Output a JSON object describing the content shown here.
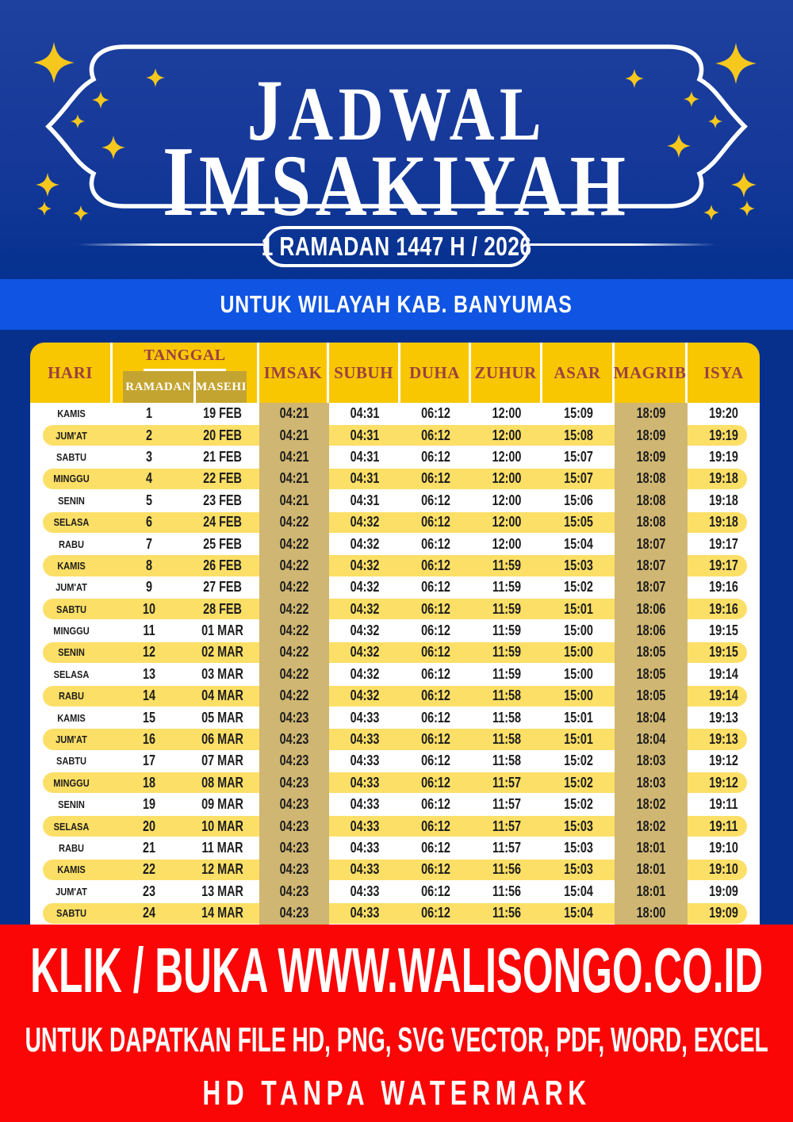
{
  "title": {
    "line1": "JADWAL",
    "line2": "IMSAKIYAH"
  },
  "badge": {
    "label": "1 RAMADAN 1447 H / 2026"
  },
  "region_banner": {
    "label": "UNTUK WILAYAH KAB. BANYUMAS"
  },
  "table": {
    "headers": {
      "hari": "HARI",
      "tanggal": "TANGGAL",
      "ramadan": "RAMADAN",
      "masehi": "MASEHI",
      "times": [
        "IMSAK",
        "SUBUH",
        "DUHA",
        "ZUHUR",
        "ASAR",
        "MAGRIB",
        "ISYA"
      ]
    },
    "rows": [
      {
        "hari": "KAMIS",
        "ramadan": "1",
        "masehi": "19 FEB",
        "imsak": "04:21",
        "subuh": "04:31",
        "duha": "06:12",
        "zuhur": "12:00",
        "asar": "15:09",
        "magrib": "18:09",
        "isya": "19:20"
      },
      {
        "hari": "JUM'AT",
        "ramadan": "2",
        "masehi": "20 FEB",
        "imsak": "04:21",
        "subuh": "04:31",
        "duha": "06:12",
        "zuhur": "12:00",
        "asar": "15:08",
        "magrib": "18:09",
        "isya": "19:19"
      },
      {
        "hari": "SABTU",
        "ramadan": "3",
        "masehi": "21 FEB",
        "imsak": "04:21",
        "subuh": "04:31",
        "duha": "06:12",
        "zuhur": "12:00",
        "asar": "15:07",
        "magrib": "18:09",
        "isya": "19:19"
      },
      {
        "hari": "MINGGU",
        "ramadan": "4",
        "masehi": "22 FEB",
        "imsak": "04:21",
        "subuh": "04:31",
        "duha": "06:12",
        "zuhur": "12:00",
        "asar": "15:07",
        "magrib": "18:08",
        "isya": "19:18"
      },
      {
        "hari": "SENIN",
        "ramadan": "5",
        "masehi": "23 FEB",
        "imsak": "04:21",
        "subuh": "04:31",
        "duha": "06:12",
        "zuhur": "12:00",
        "asar": "15:06",
        "magrib": "18:08",
        "isya": "19:18"
      },
      {
        "hari": "SELASA",
        "ramadan": "6",
        "masehi": "24 FEB",
        "imsak": "04:22",
        "subuh": "04:32",
        "duha": "06:12",
        "zuhur": "12:00",
        "asar": "15:05",
        "magrib": "18:08",
        "isya": "19:18"
      },
      {
        "hari": "RABU",
        "ramadan": "7",
        "masehi": "25 FEB",
        "imsak": "04:22",
        "subuh": "04:32",
        "duha": "06:12",
        "zuhur": "12:00",
        "asar": "15:04",
        "magrib": "18:07",
        "isya": "19:17"
      },
      {
        "hari": "KAMIS",
        "ramadan": "8",
        "masehi": "26 FEB",
        "imsak": "04:22",
        "subuh": "04:32",
        "duha": "06:12",
        "zuhur": "11:59",
        "asar": "15:03",
        "magrib": "18:07",
        "isya": "19:17"
      },
      {
        "hari": "JUM'AT",
        "ramadan": "9",
        "masehi": "27 FEB",
        "imsak": "04:22",
        "subuh": "04:32",
        "duha": "06:12",
        "zuhur": "11:59",
        "asar": "15:02",
        "magrib": "18:07",
        "isya": "19:16"
      },
      {
        "hari": "SABTU",
        "ramadan": "10",
        "masehi": "28 FEB",
        "imsak": "04:22",
        "subuh": "04:32",
        "duha": "06:12",
        "zuhur": "11:59",
        "asar": "15:01",
        "magrib": "18:06",
        "isya": "19:16"
      },
      {
        "hari": "MINGGU",
        "ramadan": "11",
        "masehi": "01 MAR",
        "imsak": "04:22",
        "subuh": "04:32",
        "duha": "06:12",
        "zuhur": "11:59",
        "asar": "15:00",
        "magrib": "18:06",
        "isya": "19:15"
      },
      {
        "hari": "SENIN",
        "ramadan": "12",
        "masehi": "02 MAR",
        "imsak": "04:22",
        "subuh": "04:32",
        "duha": "06:12",
        "zuhur": "11:59",
        "asar": "15:00",
        "magrib": "18:05",
        "isya": "19:15"
      },
      {
        "hari": "SELASA",
        "ramadan": "13",
        "masehi": "03 MAR",
        "imsak": "04:22",
        "subuh": "04:32",
        "duha": "06:12",
        "zuhur": "11:59",
        "asar": "15:00",
        "magrib": "18:05",
        "isya": "19:14"
      },
      {
        "hari": "RABU",
        "ramadan": "14",
        "masehi": "04 MAR",
        "imsak": "04:22",
        "subuh": "04:32",
        "duha": "06:12",
        "zuhur": "11:58",
        "asar": "15:00",
        "magrib": "18:05",
        "isya": "19:14"
      },
      {
        "hari": "KAMIS",
        "ramadan": "15",
        "masehi": "05 MAR",
        "imsak": "04:23",
        "subuh": "04:33",
        "duha": "06:12",
        "zuhur": "11:58",
        "asar": "15:01",
        "magrib": "18:04",
        "isya": "19:13"
      },
      {
        "hari": "JUM'AT",
        "ramadan": "16",
        "masehi": "06 MAR",
        "imsak": "04:23",
        "subuh": "04:33",
        "duha": "06:12",
        "zuhur": "11:58",
        "asar": "15:01",
        "magrib": "18:04",
        "isya": "19:13"
      },
      {
        "hari": "SABTU",
        "ramadan": "17",
        "masehi": "07 MAR",
        "imsak": "04:23",
        "subuh": "04:33",
        "duha": "06:12",
        "zuhur": "11:58",
        "asar": "15:02",
        "magrib": "18:03",
        "isya": "19:12"
      },
      {
        "hari": "MINGGU",
        "ramadan": "18",
        "masehi": "08 MAR",
        "imsak": "04:23",
        "subuh": "04:33",
        "duha": "06:12",
        "zuhur": "11:57",
        "asar": "15:02",
        "magrib": "18:03",
        "isya": "19:12"
      },
      {
        "hari": "SENIN",
        "ramadan": "19",
        "masehi": "09 MAR",
        "imsak": "04:23",
        "subuh": "04:33",
        "duha": "06:12",
        "zuhur": "11:57",
        "asar": "15:02",
        "magrib": "18:02",
        "isya": "19:11"
      },
      {
        "hari": "SELASA",
        "ramadan": "20",
        "masehi": "10 MAR",
        "imsak": "04:23",
        "subuh": "04:33",
        "duha": "06:12",
        "zuhur": "11:57",
        "asar": "15:03",
        "magrib": "18:02",
        "isya": "19:11"
      },
      {
        "hari": "RABU",
        "ramadan": "21",
        "masehi": "11 MAR",
        "imsak": "04:23",
        "subuh": "04:33",
        "duha": "06:12",
        "zuhur": "11:57",
        "asar": "15:03",
        "magrib": "18:01",
        "isya": "19:10"
      },
      {
        "hari": "KAMIS",
        "ramadan": "22",
        "masehi": "12 MAR",
        "imsak": "04:23",
        "subuh": "04:33",
        "duha": "06:12",
        "zuhur": "11:56",
        "asar": "15:03",
        "magrib": "18:01",
        "isya": "19:10"
      },
      {
        "hari": "JUM'AT",
        "ramadan": "23",
        "masehi": "13 MAR",
        "imsak": "04:23",
        "subuh": "04:33",
        "duha": "06:12",
        "zuhur": "11:56",
        "asar": "15:04",
        "magrib": "18:01",
        "isya": "19:09"
      },
      {
        "hari": "SABTU",
        "ramadan": "24",
        "masehi": "14 MAR",
        "imsak": "04:23",
        "subuh": "04:33",
        "duha": "06:12",
        "zuhur": "11:56",
        "asar": "15:04",
        "magrib": "18:00",
        "isya": "19:09"
      }
    ]
  },
  "footer": {
    "line1": "KLIK / BUKA WWW.WALISONGO.CO.ID",
    "line2": "UNTUK DAPATKAN FILE HD, PNG, SVG VECTOR, PDF, WORD, EXCEL",
    "line3": "HD TANPA WATERMARK"
  },
  "decor": {
    "star_icon": "four-point-sparkle",
    "frame_icon": "islamic-plaque-frame"
  },
  "colors": {
    "navy": "#16399a",
    "bright_blue": "#0f54e2",
    "red": "#fb0606",
    "header_gold": "#f8c702",
    "sub_olive": "#c4a431",
    "stripe_olive": "#cfb672",
    "row_yellow": "#fcdf66",
    "header_text_maroon": "#9c4040",
    "star_gold": "#f6c81e"
  }
}
